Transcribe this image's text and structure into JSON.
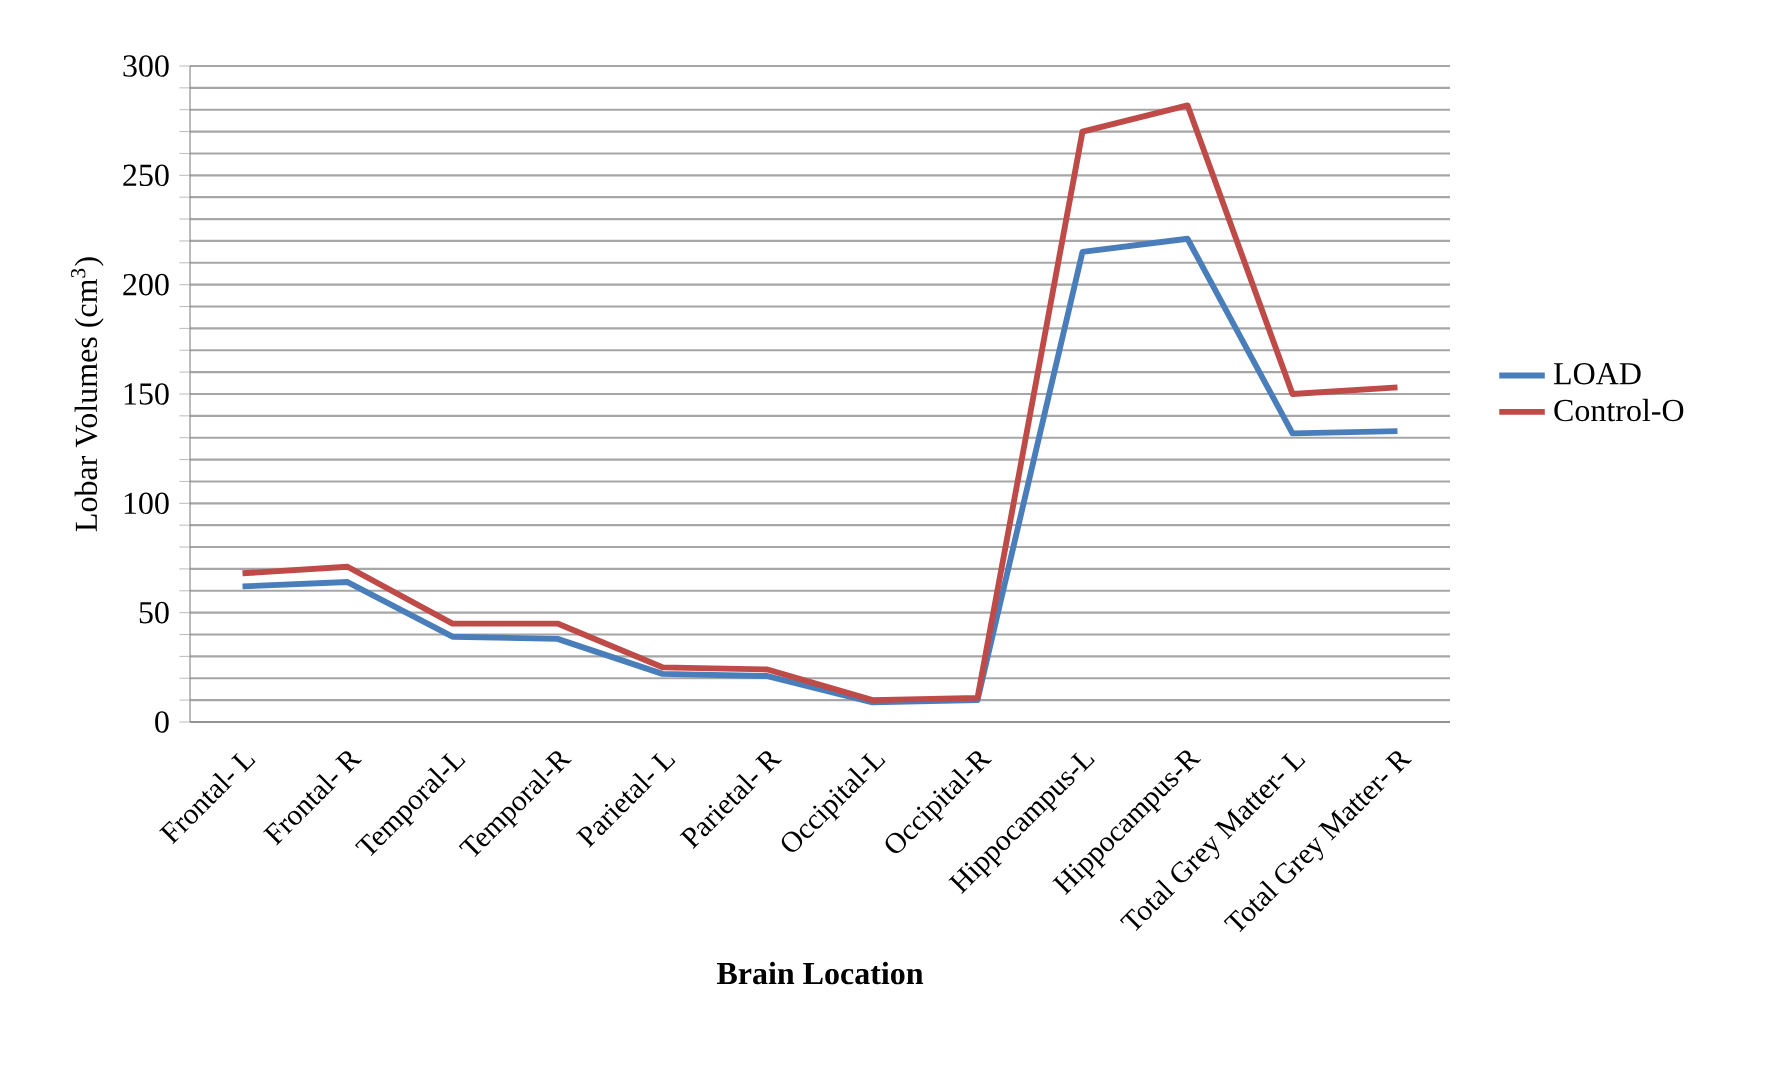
{
  "chart_data": {
    "type": "line",
    "xlabel": "Brain Location",
    "ylabel": "Lobar Volumes (cm$^{3}$)",
    "categories": [
      "Frontal- L",
      "Frontal- R",
      "Temporal-L",
      "Temporal-R",
      "Parietal- L",
      "Parietal- R",
      "Occipital-L",
      "Occipital-R",
      "Hippocampus-L",
      "Hippocampus-R",
      "Total Grey Matter- L",
      "Total Grey Matter- R"
    ],
    "series": [
      {
        "name": "LOAD",
        "color": "#4a7ebb",
        "values": [
          62,
          64,
          39,
          38,
          22,
          21,
          9,
          10,
          215,
          221,
          132,
          133
        ]
      },
      {
        "name": "Control-O",
        "color": "#be4b48",
        "values": [
          68,
          71,
          45,
          45,
          25,
          24,
          10,
          11,
          270,
          282,
          150,
          153
        ]
      }
    ],
    "ylim": [
      0,
      300
    ],
    "yticks": [
      0,
      {
        "value": 10,
        "label": null
      },
      {
        "value": 20,
        "label": null
      },
      {
        "value": 30,
        "label": null
      },
      {
        "value": 40,
        "label": null
      },
      50,
      {
        "value": 60,
        "label": null
      },
      {
        "value": 70,
        "label": null
      },
      {
        "value": 80,
        "label": null
      },
      {
        "value": 90,
        "label": null
      },
      100,
      {
        "value": 110,
        "label": null
      },
      {
        "value": 120,
        "label": null
      },
      {
        "value": 130,
        "label": null
      },
      {
        "value": 140,
        "label": null
      },
      150,
      {
        "value": 160,
        "label": null
      },
      {
        "value": 170,
        "label": null
      },
      {
        "value": 180,
        "label": null
      },
      {
        "value": 190,
        "label": null
      },
      200,
      {
        "value": 210,
        "label": null
      },
      {
        "value": 220,
        "label": null
      },
      {
        "value": 230,
        "label": null
      },
      {
        "value": 240,
        "label": null
      },
      250,
      {
        "value": 260,
        "label": null
      },
      {
        "value": 270,
        "label": null
      },
      {
        "value": 280,
        "label": null
      },
      {
        "value": 290,
        "label": null
      },
      300
    ],
    "grid": "y",
    "legend": "right",
    "marker": "none",
    "line_style": "solid"
  }
}
